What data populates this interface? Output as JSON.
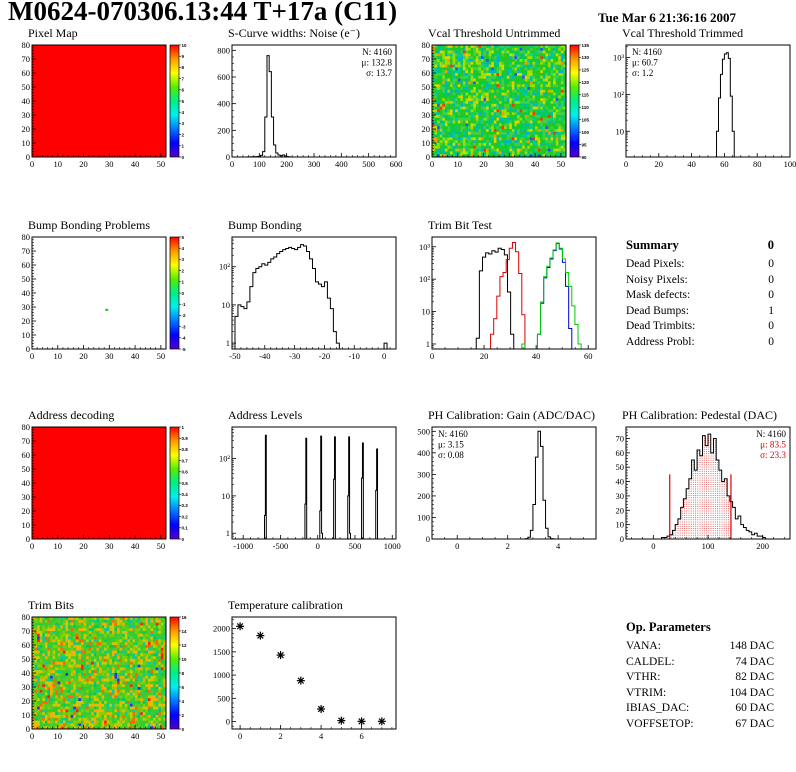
{
  "page": {
    "title": "M0624-070306.13:44 T+17a (C11)",
    "date": "Tue Mar  6 21:36:16 2007"
  },
  "summary": {
    "title": "Summary",
    "total": "0",
    "rows": [
      {
        "label": "Dead Pixels:",
        "value": "0"
      },
      {
        "label": "Noisy Pixels:",
        "value": "0"
      },
      {
        "label": "Mask defects:",
        "value": "0"
      },
      {
        "label": "Dead Bumps:",
        "value": "1"
      },
      {
        "label": "Dead Trimbits:",
        "value": "0"
      },
      {
        "label": "Address Probl:",
        "value": "0"
      }
    ]
  },
  "op_parameters": {
    "title": "Op. Parameters",
    "rows": [
      {
        "label": "VANA:",
        "value": "148 DAC"
      },
      {
        "label": "CALDEL:",
        "value": "74 DAC"
      },
      {
        "label": "VTHR:",
        "value": "82 DAC"
      },
      {
        "label": "VTRIM:",
        "value": "104 DAC"
      },
      {
        "label": "IBIAS_DAC:",
        "value": "60 DAC"
      },
      {
        "label": "VOFFSETOP:",
        "value": "67 DAC"
      }
    ]
  },
  "palette_top_to_bottom": [
    "#ff0000",
    "#ff9900",
    "#ffff00",
    "#55ee00",
    "#00ee88",
    "#00eeee",
    "#0077ff",
    "#0000ff",
    "#5500cc"
  ],
  "chart_data": [
    {
      "id": "pixel-map",
      "title": "Pixel Map",
      "type": "heatmap",
      "fill": "#ff0000",
      "x": {
        "min": 0,
        "max": 52,
        "ticks": [
          0,
          10,
          20,
          30,
          40,
          50
        ],
        "minor": 2
      },
      "y": {
        "min": 0,
        "max": 80,
        "ticks": [
          0,
          10,
          20,
          30,
          40,
          50,
          60,
          70,
          80
        ],
        "minor": 2
      },
      "colorbar": {
        "labels": [
          "10",
          "9",
          "8",
          "7",
          "6",
          "5",
          "4",
          "3",
          "2",
          "1",
          "0"
        ]
      }
    },
    {
      "id": "scurve-noise",
      "title": "S-Curve widths: Noise (e⁻)",
      "type": "hist",
      "x": {
        "min": 0,
        "max": 600,
        "ticks": [
          0,
          100,
          200,
          300,
          400,
          500,
          600
        ],
        "minor": 20
      },
      "y": {
        "min": 0,
        "max": 840,
        "ticks": [
          0,
          200,
          400,
          600,
          800
        ],
        "minor": 50
      },
      "series": [
        {
          "color": "#000000",
          "x0": 56,
          "dx": 8,
          "values": [
            1,
            1,
            2,
            2,
            3,
            5,
            12,
            40,
            300,
            760,
            640,
            300,
            90,
            30,
            15,
            8,
            15,
            8,
            3,
            1
          ]
        }
      ],
      "stats": {
        "pos": "tr",
        "lines": [
          {
            "t": "N: 4160"
          },
          {
            "t": "μ: 132.8"
          },
          {
            "t": "σ: 13.7"
          }
        ]
      }
    },
    {
      "id": "vcal-threshold-untrimmed",
      "title": "Vcal Threshold Untrimmed",
      "type": "heatmap",
      "noise": {
        "seed": 7,
        "colors": [
          [
            "#22c822",
            30
          ],
          [
            "#3fd23f",
            20
          ],
          [
            "#00cc55",
            12
          ],
          [
            "#00c8a0",
            8
          ],
          [
            "#00b4c8",
            6
          ],
          [
            "#a0dc00",
            12
          ],
          [
            "#d8d800",
            7
          ],
          [
            "#ff9900",
            2
          ],
          [
            "#ff3300",
            1
          ],
          [
            "#2b50ff",
            1
          ]
        ],
        "edge": [
          [
            "#ffcc00",
            5
          ],
          [
            "#ff8800",
            3
          ],
          [
            "#ff3300",
            3
          ],
          [
            "#a0dc00",
            3
          ],
          [
            "#d8d800",
            3
          ]
        ]
      },
      "x": {
        "min": 0,
        "max": 52,
        "ticks": [
          0,
          10,
          20,
          30,
          40,
          50
        ],
        "minor": 2
      },
      "y": {
        "min": 0,
        "max": 80,
        "ticks": [
          0,
          10,
          20,
          30,
          40,
          50,
          60,
          70,
          80
        ],
        "minor": 2
      },
      "colorbar": {
        "labels": [
          "135",
          "130",
          "125",
          "120",
          "115",
          "110",
          "105",
          "100",
          "95",
          "90"
        ]
      }
    },
    {
      "id": "vcal-threshold-trimmed",
      "title": "Vcal Threshold Trimmed",
      "type": "hist",
      "x": {
        "min": 0,
        "max": 100,
        "ticks": [
          0,
          20,
          40,
          60,
          80,
          100
        ],
        "minor": 5
      },
      "y": {
        "log": true,
        "min": 2,
        "max": 2200
      },
      "series": [
        {
          "color": "#000000",
          "x0": 54,
          "dx": 1.2,
          "values": [
            2,
            10,
            80,
            350,
            900,
            1250,
            1350,
            950,
            90,
            10,
            2
          ]
        }
      ],
      "stats": {
        "pos": "tl",
        "lines": [
          {
            "t": "N: 4160"
          },
          {
            "t": "μ: 60.7"
          },
          {
            "t": "σ:  1.2"
          }
        ]
      }
    },
    {
      "id": "bump-bonding-problems",
      "title": "Bump Bonding Problems",
      "type": "heatmap",
      "fill": "#ffffff",
      "points": [
        {
          "x": 29,
          "y": 28,
          "c": "#00dd00"
        }
      ],
      "x": {
        "min": 0,
        "max": 52,
        "ticks": [
          0,
          10,
          20,
          30,
          40,
          50
        ],
        "minor": 2
      },
      "y": {
        "min": 0,
        "max": 80,
        "ticks": [
          0,
          10,
          20,
          30,
          40,
          50,
          60,
          70,
          80
        ],
        "minor": 2
      },
      "colorbar": {
        "labels": [
          "5",
          "4",
          "3",
          "2",
          "1",
          "0",
          "-1",
          "-2",
          "-3",
          "-4",
          "-5"
        ]
      }
    },
    {
      "id": "bump-bonding",
      "title": "Bump Bonding",
      "type": "hist",
      "x": {
        "min": -51,
        "max": 4,
        "ticks": [
          -50,
          -40,
          -30,
          -20,
          -10,
          0
        ],
        "minor": 2
      },
      "y": {
        "log": true,
        "min": 0.7,
        "max": 600
      },
      "series": [
        {
          "color": "#000000",
          "x0": -50,
          "dx": 1,
          "values": [
            5,
            10,
            9,
            8,
            12,
            30,
            70,
            90,
            100,
            120,
            110,
            130,
            160,
            180,
            220,
            250,
            280,
            300,
            320,
            300,
            280,
            320,
            380,
            350,
            250,
            160,
            90,
            40,
            35,
            30,
            40,
            15,
            8,
            2,
            1,
            0,
            0,
            0,
            0,
            0,
            0,
            0,
            0,
            0,
            0,
            0,
            0,
            0,
            0,
            0,
            1,
            0
          ]
        }
      ]
    },
    {
      "id": "trim-bit-test",
      "title": "Trim Bit Test",
      "type": "hist",
      "x": {
        "min": 0,
        "max": 63,
        "ticks": [
          0,
          20,
          40,
          60
        ],
        "minor": 5
      },
      "y": {
        "log": true,
        "min": 0.7,
        "max": 2000
      },
      "series": [
        {
          "color": "#000000",
          "x0": 17,
          "dx": 1.2,
          "values": [
            1.5,
            180,
            480,
            650,
            600,
            750,
            680,
            900,
            820,
            560,
            40,
            2
          ]
        },
        {
          "color": "#dd0000",
          "x0": 22.5,
          "dx": 1.2,
          "values": [
            2,
            6,
            30,
            120,
            160,
            400,
            900,
            1350,
            700,
            150,
            8,
            0,
            0,
            0,
            0,
            0,
            0,
            0,
            0,
            0,
            0,
            0,
            0,
            0,
            0,
            0,
            0,
            0,
            0,
            0,
            0
          ]
        },
        {
          "color": "#0000dd",
          "x0": 40.5,
          "dx": 1.2,
          "values": [
            2,
            18,
            110,
            230,
            420,
            760,
            1250,
            850,
            330,
            60,
            3
          ]
        },
        {
          "color": "#00cc00",
          "x0": 0.9,
          "dx": 1.2,
          "values": [
            0,
            0,
            0,
            0,
            0,
            0,
            0,
            0,
            0,
            0,
            0,
            0,
            0,
            0,
            0,
            0,
            0,
            0,
            0,
            0,
            0,
            0,
            0,
            0,
            0,
            0,
            0,
            0,
            1,
            0,
            0,
            0,
            0,
            2,
            20,
            120,
            250,
            450,
            800,
            1300,
            900,
            420,
            160,
            60,
            15,
            4,
            1
          ]
        }
      ]
    },
    {
      "id": "address-decoding",
      "title": "Address decoding",
      "type": "heatmap",
      "fill": "#ff0000",
      "x": {
        "min": 0,
        "max": 52,
        "ticks": [
          0,
          10,
          20,
          30,
          40,
          50
        ],
        "minor": 2
      },
      "y": {
        "min": 0,
        "max": 80,
        "ticks": [
          0,
          10,
          20,
          30,
          40,
          50,
          60,
          70,
          80
        ],
        "minor": 2
      },
      "colorbar": {
        "labels": [
          "1",
          "0.9",
          "0.8",
          "0.7",
          "0.6",
          "0.5",
          "0.4",
          "0.3",
          "0.2",
          "0.1",
          "0"
        ]
      }
    },
    {
      "id": "address-levels",
      "title": "Address Levels",
      "type": "hist",
      "x": {
        "min": -1150,
        "max": 1050,
        "ticks": [
          -1000,
          -500,
          0,
          500,
          1000
        ],
        "minor": 100
      },
      "y": {
        "log": true,
        "min": 0.7,
        "max": 700
      },
      "series": [
        {
          "color": "#000000",
          "x0": -714,
          "dx": 12,
          "values": [
            3,
            420
          ]
        },
        {
          "color": "#000000",
          "x0": -172,
          "dx": 12,
          "values": [
            6,
            350
          ]
        },
        {
          "color": "#000000",
          "x0": 28,
          "dx": 12,
          "values": [
            4,
            400,
            1
          ]
        },
        {
          "color": "#000000",
          "x0": 213,
          "dx": 12,
          "values": [
            28,
            380
          ]
        },
        {
          "color": "#000000",
          "x0": 403,
          "dx": 12,
          "values": [
            10,
            380,
            1
          ]
        },
        {
          "color": "#000000",
          "x0": 588,
          "dx": 12,
          "values": [
            30,
            260
          ]
        },
        {
          "color": "#000000",
          "x0": 778,
          "dx": 12,
          "values": [
            14,
            180
          ]
        }
      ]
    },
    {
      "id": "ph-calibration-gain",
      "title": "PH Calibration: Gain (ADC/DAC)",
      "type": "hist",
      "x": {
        "min": -1,
        "max": 5.5,
        "ticks": [
          0,
          2,
          4
        ],
        "minor": 0.5
      },
      "y": {
        "min": 0,
        "max": 520,
        "ticks": [
          0,
          100,
          200,
          300,
          400,
          500
        ],
        "minor": 20
      },
      "series": [
        {
          "color": "#000000",
          "x0": 2.7,
          "dx": 0.1,
          "values": [
            2,
            8,
            40,
            160,
            380,
            500,
            430,
            180,
            50,
            10,
            2
          ]
        }
      ],
      "stats": {
        "pos": "tl",
        "lines": [
          {
            "t": "N: 4160"
          },
          {
            "t": "μ: 3.15"
          },
          {
            "t": "σ: 0.08"
          }
        ]
      }
    },
    {
      "id": "ph-calibration-pedestal",
      "title": "PH Calibration: Pedestal (DAC)",
      "type": "hist",
      "x": {
        "min": -50,
        "max": 250,
        "ticks": [
          0,
          100,
          200
        ],
        "minor": 20
      },
      "y": {
        "min": 0,
        "max": 78,
        "ticks": [
          0,
          10,
          20,
          30,
          40,
          50,
          60,
          70
        ],
        "minor": 2
      },
      "series": [
        {
          "color": "#000000",
          "x0": 10,
          "dx": 5,
          "fill": "dots",
          "clip": [
            30,
            142
          ],
          "values": [
            0,
            1,
            1,
            2,
            3,
            6,
            10,
            14,
            22,
            28,
            35,
            42,
            55,
            48,
            62,
            58,
            72,
            65,
            73,
            60,
            70,
            55,
            48,
            40,
            42,
            30,
            26,
            22,
            14,
            16,
            10,
            8,
            6,
            5,
            3,
            4,
            2,
            2,
            1
          ]
        }
      ],
      "vlines": [
        {
          "x": 30,
          "y": 45,
          "c": "#dd0000"
        },
        {
          "x": 142,
          "y": 45,
          "c": "#dd0000"
        }
      ],
      "stats": {
        "pos": "tr",
        "lines": [
          {
            "t": "N: 4160",
            "c": "#000000"
          },
          {
            "t": "μ: 83.5",
            "c": "#dd0000"
          },
          {
            "t": "σ: 23.3",
            "c": "#dd0000"
          }
        ]
      }
    },
    {
      "id": "trim-bits",
      "title": "Trim Bits",
      "type": "heatmap",
      "noise": {
        "seed": 3,
        "colors": [
          [
            "#33cc33",
            28
          ],
          [
            "#55cc22",
            18
          ],
          [
            "#88cc00",
            14
          ],
          [
            "#cccc00",
            12
          ],
          [
            "#ffaa00",
            10
          ],
          [
            "#ff6600",
            5
          ],
          [
            "#00ccaa",
            6
          ],
          [
            "#00c864",
            5
          ],
          [
            "#ff2200",
            1
          ],
          [
            "#2233ff",
            1
          ]
        ]
      },
      "x": {
        "min": 0,
        "max": 52,
        "ticks": [
          0,
          10,
          20,
          30,
          40,
          50
        ],
        "minor": 2
      },
      "y": {
        "min": 0,
        "max": 80,
        "ticks": [
          0,
          10,
          20,
          30,
          40,
          50,
          60,
          70,
          80
        ],
        "minor": 2
      },
      "colorbar": {
        "labels": [
          "16",
          "14",
          "12",
          "10",
          "8",
          "6",
          "4",
          "2",
          "0"
        ]
      }
    },
    {
      "id": "temperature-calibration",
      "title": "Temperature calibration",
      "type": "scatter",
      "x": {
        "min": -0.4,
        "max": 7.7,
        "ticks": [
          0,
          2,
          4,
          6
        ],
        "minor": 0.5
      },
      "y": {
        "min": -160,
        "max": 2250,
        "ticks": [
          0,
          500,
          1000,
          1500,
          2000
        ],
        "minor": 100
      },
      "points": [
        [
          0,
          2050
        ],
        [
          1,
          1850
        ],
        [
          2,
          1430
        ],
        [
          3,
          880
        ],
        [
          4,
          270
        ],
        [
          5,
          20
        ],
        [
          6,
          5
        ],
        [
          7,
          5
        ]
      ]
    }
  ]
}
